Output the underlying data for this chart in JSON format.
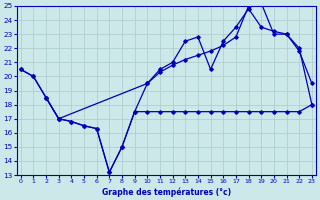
{
  "title": "Graphe des températures (°c)",
  "bg_color": "#cce8e8",
  "grid_color": "#aacccc",
  "line_color": "#0000bb",
  "ylim": [
    13,
    25
  ],
  "xlim": [
    0,
    23
  ],
  "yticks": [
    13,
    14,
    15,
    16,
    17,
    18,
    19,
    20,
    21,
    22,
    23,
    24,
    25
  ],
  "xticks": [
    0,
    1,
    2,
    3,
    4,
    5,
    6,
    7,
    8,
    9,
    10,
    11,
    12,
    13,
    14,
    15,
    16,
    17,
    18,
    19,
    20,
    21,
    22,
    23
  ],
  "line1_x": [
    0,
    1,
    2,
    3,
    4,
    5,
    6,
    7,
    8,
    9,
    10,
    11,
    12,
    13,
    14,
    15,
    16,
    17,
    18,
    19,
    20,
    21,
    22,
    23
  ],
  "line1_y": [
    20.5,
    20.0,
    18.5,
    17.0,
    16.8,
    16.5,
    16.3,
    13.2,
    15.0,
    17.5,
    19.5,
    20.5,
    21.0,
    22.5,
    22.8,
    20.5,
    22.5,
    23.5,
    24.8,
    23.5,
    23.2,
    23.0,
    21.8,
    19.5
  ],
  "line2_x": [
    0,
    1,
    2,
    3,
    10,
    11,
    12,
    13,
    14,
    15,
    16,
    17,
    18,
    19,
    20,
    21,
    22,
    23
  ],
  "line2_y": [
    20.5,
    20.0,
    18.5,
    17.0,
    19.5,
    20.3,
    20.8,
    21.2,
    21.5,
    21.8,
    22.2,
    22.8,
    25.0,
    25.2,
    23.0,
    23.0,
    22.0,
    18.0
  ],
  "line3_x": [
    2,
    3,
    4,
    5,
    6,
    7,
    8,
    9,
    10,
    11,
    12,
    13,
    14,
    15,
    16,
    17,
    18,
    19,
    20,
    21,
    22,
    23
  ],
  "line3_y": [
    18.5,
    17.0,
    16.8,
    16.5,
    16.3,
    13.2,
    15.0,
    17.5,
    17.5,
    17.5,
    17.5,
    17.5,
    17.5,
    17.5,
    17.5,
    17.5,
    17.5,
    17.5,
    17.5,
    17.5,
    17.5,
    18.0
  ]
}
